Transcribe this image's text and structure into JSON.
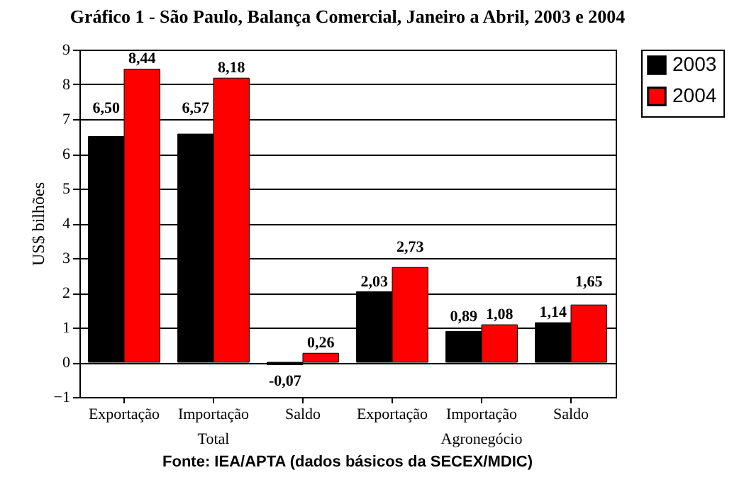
{
  "chart_data": {
    "type": "bar",
    "title": "Gráfico 1 - São Paulo, Balança Comercial, Janeiro a Abril, 2003 e 2004",
    "ylabel": "US$ bilhões",
    "categories": [
      "Exportação",
      "Importação",
      "Saldo",
      "Exportação",
      "Importação",
      "Saldo"
    ],
    "series": [
      {
        "name": "2003",
        "color": "#000000",
        "values": [
          6.5,
          6.57,
          -0.07,
          2.03,
          0.89,
          1.14
        ],
        "value_labels": [
          "6,50",
          "6,57",
          "-0,07",
          "2,03",
          "0,89",
          "1,14"
        ]
      },
      {
        "name": "2004",
        "color": "#ff0000",
        "values": [
          8.44,
          8.18,
          0.26,
          2.73,
          1.08,
          1.65
        ],
        "value_labels": [
          "8,44",
          "8,18",
          "0,26",
          "2,73",
          "1,08",
          "1,65"
        ]
      }
    ],
    "ylim": [
      -1,
      9
    ],
    "yticks": [
      -1,
      0,
      1,
      2,
      3,
      4,
      5,
      6,
      7,
      8,
      9
    ],
    "grid": "y",
    "legend": "right",
    "annotations": [
      "Total",
      "Agronegócio",
      "Fonte: IEA/APTA (dados básicos da SECEX/MDIC)"
    ]
  }
}
